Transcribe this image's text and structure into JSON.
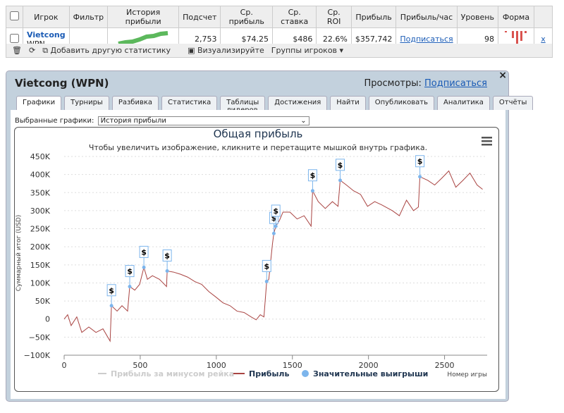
{
  "table": {
    "headers": [
      "Игрок",
      "Фильтр",
      "История прибыли",
      "Подсчет",
      "Ср. прибыль",
      "Ср. ставка",
      "Ср. ROI",
      "Прибыль",
      "Прибыль/час",
      "Уровень",
      "Форма"
    ],
    "row": {
      "player": "Vietcong",
      "site": "WPN",
      "count": "2,753",
      "avg_profit": "$74.25",
      "avg_stake": "$486",
      "avg_roi": "22.6%",
      "profit": "$357,742",
      "per_hour": "Подписаться",
      "level": "98",
      "remove": "x"
    }
  },
  "toolbar": {
    "add_stat": "Добавить другую статистику",
    "visualize": "Визуализируйте",
    "groups": "Группы игроков"
  },
  "panel": {
    "title": "Vietcong (WPN)",
    "views_label": "Просмотры:",
    "views_link": "Подписаться",
    "close": "×",
    "tabs": [
      "Графики",
      "Турниры",
      "Разбивка",
      "Статистика",
      "Таблицы лидеров",
      "Достижения",
      "Найти",
      "Опубликовать",
      "Аналитика",
      "Отчёты"
    ],
    "selector_label": "Выбранные графики:",
    "selector_value": "История прибыли"
  },
  "chart_data": {
    "type": "line",
    "title": "Общая прибыль",
    "subtitle": "Чтобы увеличить изображение, кликните и перетащите мышкой внутрь графика.",
    "xlabel": "Номер игры",
    "ylabel": "Суммарный итог (USD)",
    "xlim": [
      0,
      2780
    ],
    "xticks": [
      0,
      500,
      1000,
      1500,
      2000,
      2500
    ],
    "ylim": [
      -100000,
      450000
    ],
    "yticks": [
      {
        "value": -100000,
        "label": "−100K"
      },
      {
        "value": -50000,
        "label": "−50K"
      },
      {
        "value": 0,
        "label": "0"
      },
      {
        "value": 50000,
        "label": "50K"
      },
      {
        "value": 100000,
        "label": "100K"
      },
      {
        "value": 150000,
        "label": "150K"
      },
      {
        "value": 200000,
        "label": "200K"
      },
      {
        "value": 250000,
        "label": "250K"
      },
      {
        "value": 300000,
        "label": "300K"
      },
      {
        "value": 350000,
        "label": "350K"
      },
      {
        "value": 400000,
        "label": "400K"
      },
      {
        "value": 450000,
        "label": "450K"
      }
    ],
    "grid": true,
    "inactive_legend": {
      "name": "Прибыль за минусом рейка",
      "color": "#cccccc"
    },
    "x": [
      0,
      23,
      46,
      83,
      116,
      162,
      209,
      255,
      302,
      311,
      348,
      380,
      417,
      431,
      464,
      496,
      524,
      547,
      580,
      626,
      673,
      677,
      719,
      765,
      812,
      858,
      904,
      951,
      997,
      1044,
      1090,
      1136,
      1183,
      1229,
      1262,
      1289,
      1313,
      1331,
      1345,
      1369,
      1378,
      1391,
      1415,
      1438,
      1484,
      1531,
      1577,
      1623,
      1633,
      1670,
      1716,
      1763,
      1800,
      1814,
      1855,
      1902,
      1948,
      1994,
      2041,
      2087,
      2157,
      2203,
      2250,
      2296,
      2328,
      2338,
      2389,
      2435,
      2482,
      2528,
      2574,
      2621,
      2667,
      2714,
      2750
    ],
    "series": [
      {
        "name": "Прибыль",
        "color": "#a94442",
        "values": [
          0,
          12000,
          -18000,
          6000,
          -37000,
          -22000,
          -37000,
          -27000,
          -61000,
          37000,
          22000,
          37000,
          22000,
          90000,
          80000,
          96000,
          143000,
          110000,
          120000,
          110000,
          90000,
          133000,
          130000,
          124000,
          116000,
          104000,
          96000,
          76000,
          61000,
          45000,
          37000,
          22000,
          18000,
          6000,
          -2000,
          12000,
          6000,
          104000,
          110000,
          208000,
          237000,
          257000,
          273000,
          296000,
          296000,
          277000,
          286000,
          257000,
          355000,
          325000,
          306000,
          325000,
          312000,
          384000,
          371000,
          355000,
          345000,
          312000,
          325000,
          316000,
          300000,
          286000,
          329000,
          300000,
          310000,
          394000,
          384000,
          371000,
          390000,
          410000,
          365000,
          384000,
          404000,
          371000,
          359000
        ]
      }
    ],
    "markers": {
      "name": "Значительные выигрыши",
      "color": "#7cb5ec",
      "label": "$",
      "x": [
        311,
        431,
        524,
        677,
        1331,
        1378,
        1391,
        1633,
        1814,
        2338
      ],
      "values": [
        37000,
        90000,
        143000,
        133000,
        104000,
        237000,
        257000,
        355000,
        384000,
        394000
      ]
    }
  }
}
